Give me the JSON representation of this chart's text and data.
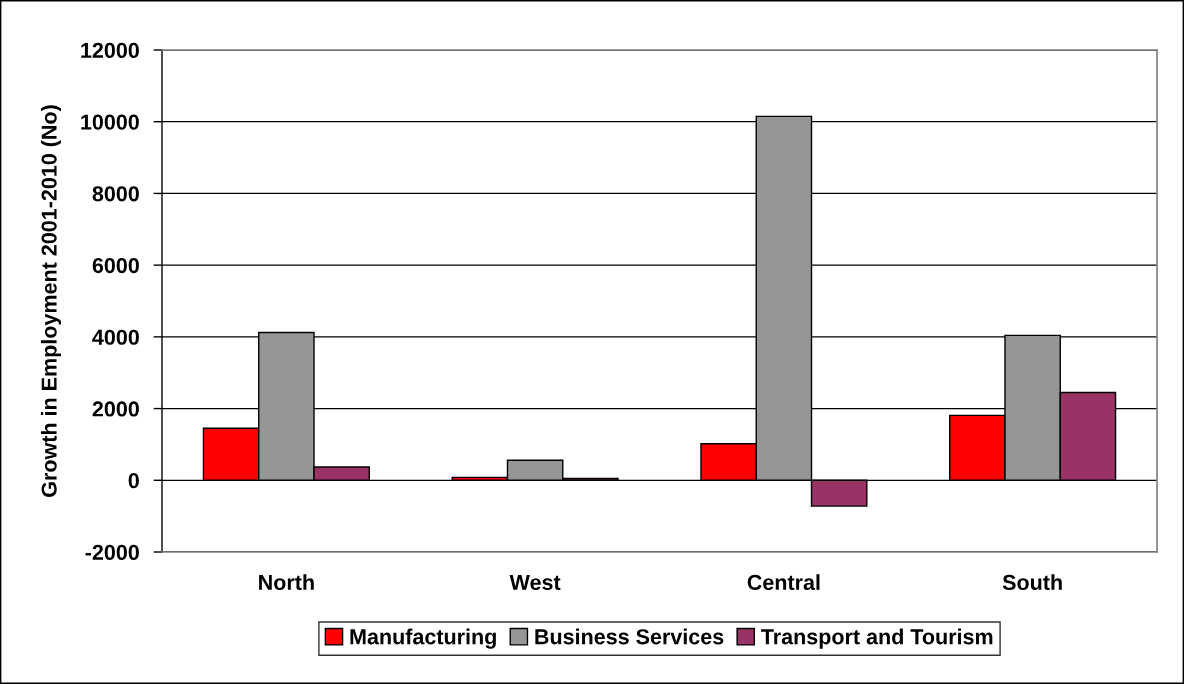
{
  "chart_data": {
    "type": "bar",
    "ylabel": "Growth in Employment 2001-2010 (No)",
    "categories": [
      "North",
      "West",
      "Central",
      "South"
    ],
    "series": [
      {
        "name": "Manufacturing",
        "color": "#ff0000",
        "values": [
          1450,
          80,
          1020,
          1810
        ]
      },
      {
        "name": "Business Services",
        "color": "#969696",
        "values": [
          4120,
          560,
          10150,
          4040
        ]
      },
      {
        "name": "Transport and Tourism",
        "color": "#993366",
        "values": [
          370,
          50,
          -720,
          2450
        ]
      }
    ],
    "ylim": [
      -2000,
      12000
    ],
    "yticks": [
      -2000,
      0,
      2000,
      4000,
      6000,
      8000,
      10000,
      12000
    ],
    "grid": "y",
    "legend": "bottom"
  }
}
